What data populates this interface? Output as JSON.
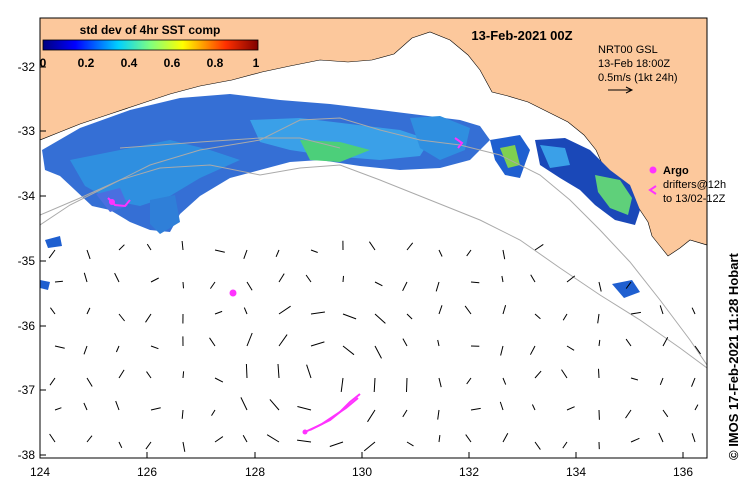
{
  "map": {
    "title": "13-Feb-2021 00Z",
    "colorbar": {
      "label": "std dev of 4hr SST comp",
      "ticks": [
        "0",
        "0.2",
        "0.4",
        "0.6",
        "0.8",
        "1"
      ]
    },
    "x_ticks": [
      "124",
      "126",
      "128",
      "130",
      "132",
      "134",
      "136"
    ],
    "y_ticks": [
      "-32",
      "-33",
      "-34",
      "-35",
      "-36",
      "-37",
      "-38"
    ],
    "current_legend": {
      "line1": "NRT00 GSL",
      "line2": "13-Feb 18:00Z",
      "line3": "0.5m/s (1kt 24h)"
    },
    "argo_legend": {
      "argo_label": "Argo",
      "drifters_line1": "drifters@12h",
      "drifters_line2": "to 13/02-12Z"
    },
    "credit": "© IMOS 17-Feb-2021 11:28 Hobart",
    "colors": {
      "land": "#fcc89c",
      "argo": "#ff33ff",
      "border": "#000000"
    }
  }
}
